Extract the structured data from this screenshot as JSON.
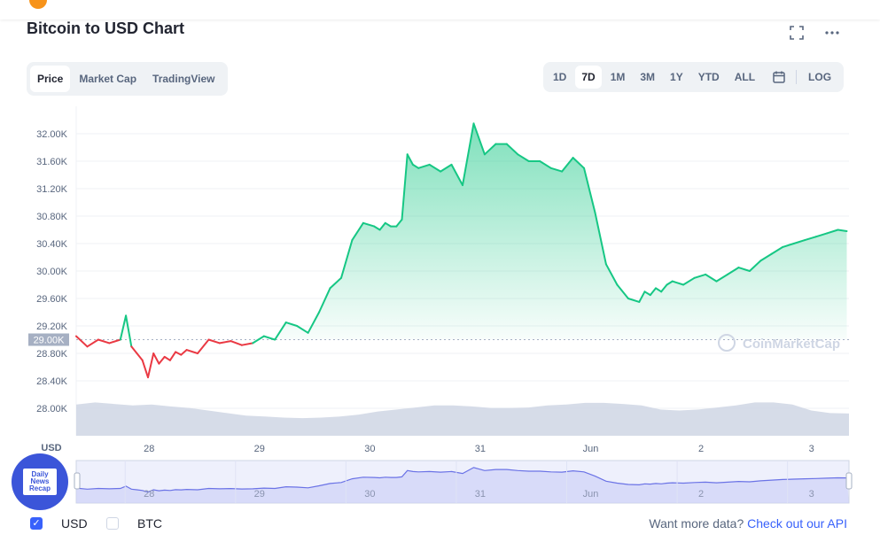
{
  "header": {
    "title": "Bitcoin to USD Chart"
  },
  "icons": {
    "fullscreen": "expand-icon",
    "more": "more-dots-icon",
    "calendar": "calendar-icon"
  },
  "tabs": [
    {
      "label": "Price",
      "active": true
    },
    {
      "label": "Market Cap",
      "active": false
    },
    {
      "label": "TradingView",
      "active": false
    }
  ],
  "ranges": [
    {
      "label": "1D",
      "active": false
    },
    {
      "label": "7D",
      "active": true
    },
    {
      "label": "1M",
      "active": false
    },
    {
      "label": "3M",
      "active": false
    },
    {
      "label": "1Y",
      "active": false
    },
    {
      "label": "YTD",
      "active": false
    },
    {
      "label": "ALL",
      "active": false
    }
  ],
  "log_label": "LOG",
  "watermark": "CoinMarketCap",
  "badge_text": "Daily News Recap",
  "currency": {
    "usd": "USD",
    "btc": "BTC",
    "usd_checked": true,
    "btc_checked": false
  },
  "api": {
    "prefix": "Want more data?",
    "link": "Check out our API"
  },
  "colors": {
    "up": "#16c784",
    "down": "#ea3943",
    "volume": "#cfd6e4",
    "nav": "#6b73e6"
  },
  "chart_data": {
    "type": "line",
    "title": "Bitcoin to USD Chart",
    "ylabel": "USD",
    "ylim": [
      27600,
      32400
    ],
    "y_ticks": [
      28000,
      28400,
      28800,
      29200,
      29600,
      30000,
      30400,
      30800,
      31200,
      31600,
      32000
    ],
    "y_tick_labels": [
      "28.00K",
      "28.40K",
      "28.80K",
      "29.20K",
      "29.60K",
      "30.00K",
      "30.40K",
      "30.80K",
      "31.20K",
      "31.60K",
      "32.00K"
    ],
    "x_ticks": [
      0.66,
      1.66,
      2.66,
      3.66,
      4.66,
      5.66,
      6.66
    ],
    "x_tick_labels": [
      "28",
      "29",
      "30",
      "31",
      "Jun",
      "2",
      "3"
    ],
    "xlim": [
      0,
      7.0
    ],
    "baseline": {
      "value": 29000,
      "label": "29.00K"
    },
    "series": [
      {
        "x": [
          0.0,
          0.1,
          0.2,
          0.3,
          0.4,
          0.45,
          0.5,
          0.55,
          0.6,
          0.65,
          0.7,
          0.75,
          0.8,
          0.85,
          0.9,
          0.95,
          1.0,
          1.1,
          1.2,
          1.3,
          1.4,
          1.5,
          1.6,
          1.7,
          1.8,
          1.9,
          2.0,
          2.1,
          2.2,
          2.3,
          2.4,
          2.5,
          2.6,
          2.7,
          2.75,
          2.8,
          2.85,
          2.9,
          2.95,
          3.0,
          3.05,
          3.1,
          3.2,
          3.3,
          3.4,
          3.5,
          3.6,
          3.7,
          3.8,
          3.9,
          4.0,
          4.1,
          4.2,
          4.3,
          4.4,
          4.5,
          4.6,
          4.7,
          4.8,
          4.9,
          5.0,
          5.1,
          5.15,
          5.2,
          5.25,
          5.3,
          5.35,
          5.4,
          5.5,
          5.6,
          5.7,
          5.8,
          5.9,
          6.0,
          6.1,
          6.2,
          6.3,
          6.4,
          6.5,
          6.6,
          6.7,
          6.8,
          6.9,
          6.98
        ],
        "values": [
          29050,
          28900,
          29000,
          28950,
          29000,
          29350,
          28900,
          28800,
          28700,
          28450,
          28800,
          28650,
          28750,
          28700,
          28820,
          28780,
          28850,
          28800,
          29000,
          28950,
          28980,
          28920,
          28950,
          29050,
          29000,
          29250,
          29200,
          29100,
          29400,
          29750,
          29900,
          30450,
          30700,
          30650,
          30600,
          30700,
          30650,
          30650,
          30750,
          31700,
          31550,
          31500,
          31550,
          31450,
          31550,
          31250,
          32150,
          31700,
          31850,
          31850,
          31700,
          31600,
          31600,
          31500,
          31450,
          31650,
          31500,
          30850,
          30100,
          29800,
          29600,
          29550,
          29700,
          29650,
          29750,
          29700,
          29800,
          29850,
          29800,
          29900,
          29950,
          29850,
          29950,
          30050,
          30000,
          30150,
          30250,
          30350,
          30400,
          30450,
          30500,
          30550,
          30600,
          30580
        ]
      }
    ],
    "volume": [
      0.62,
      0.66,
      0.63,
      0.6,
      0.62,
      0.58,
      0.55,
      0.5,
      0.45,
      0.4,
      0.38,
      0.36,
      0.35,
      0.36,
      0.38,
      0.42,
      0.48,
      0.52,
      0.56,
      0.6,
      0.6,
      0.58,
      0.55,
      0.55,
      0.56,
      0.6,
      0.62,
      0.65,
      0.65,
      0.63,
      0.6,
      0.52,
      0.5,
      0.52,
      0.56,
      0.6,
      0.66,
      0.66,
      0.62,
      0.5,
      0.45,
      0.44
    ]
  }
}
